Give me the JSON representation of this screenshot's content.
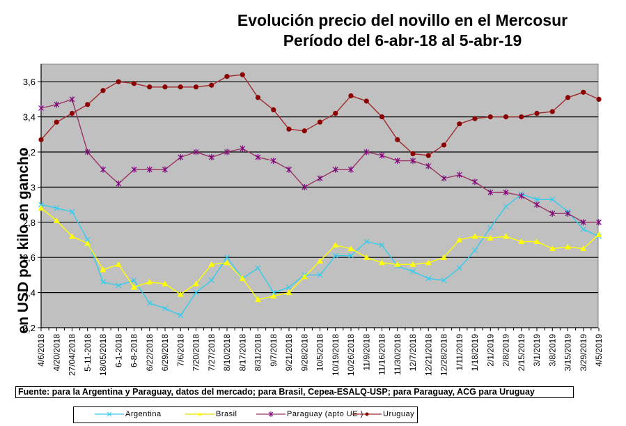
{
  "chart_data": {
    "type": "line",
    "title": [
      "Evolución precio del novillo en el Mercosur",
      "Período del 6-abr-18 al 5-abr-19"
    ],
    "xlabel": "",
    "ylabel": "en USD por kilo en gancho",
    "ylim": [
      2.2,
      3.7
    ],
    "yticks": [
      2.2,
      2.4,
      2.6,
      2.8,
      3.0,
      3.2,
      3.4,
      3.6
    ],
    "ytick_labels": [
      "2,2",
      "2,4",
      "2,6",
      "2,8",
      "3",
      "3,2",
      "3,4",
      "3,6"
    ],
    "grid": true,
    "plot_background": "#c0c0c0",
    "legend_position": "bottom",
    "categories": [
      "4/6/2018",
      "4/20/2018",
      "27/04/2018",
      "5-11-2018",
      "18/05/2018",
      "6-1-2018",
      "6-8-2018",
      "6/22/2018",
      "6/29/2018",
      "7/6/2018",
      "7/20/2018",
      "7/27/2018",
      "8/10/2018",
      "8/17/2018",
      "8/31/2018",
      "9/7/2018",
      "9/21/2018",
      "9/28/2018",
      "10/5/2018",
      "10/19/2018",
      "10/26/2018",
      "11/9/2018",
      "11/16/2018",
      "11/30/2018",
      "12/7/2018",
      "12/21/2018",
      "12/28/2018",
      "1/11/2019",
      "1/18/2019",
      "2/1/2019",
      "2/8/2019",
      "2/15/2019",
      "3/1/2019",
      "3/8/2019",
      "3/15/2019",
      "3/29/2019",
      "4/5/2019"
    ],
    "series": [
      {
        "name": "Argentina",
        "color": "#33ccee",
        "marker": "x",
        "values": [
          2.9,
          2.88,
          2.86,
          2.7,
          2.46,
          2.44,
          2.47,
          2.34,
          2.31,
          2.27,
          2.4,
          2.47,
          2.6,
          2.48,
          2.54,
          2.4,
          2.43,
          2.5,
          2.5,
          2.61,
          2.61,
          2.69,
          2.67,
          2.55,
          2.52,
          2.48,
          2.47,
          2.54,
          2.64,
          2.77,
          2.89,
          2.96,
          2.93,
          2.93,
          2.86,
          2.76,
          2.72
        ]
      },
      {
        "name": "Brasil",
        "color": "#ffff00",
        "marker": "triangle",
        "values": [
          2.88,
          2.81,
          2.72,
          2.68,
          2.53,
          2.56,
          2.43,
          2.46,
          2.45,
          2.39,
          2.45,
          2.56,
          2.57,
          2.48,
          2.36,
          2.38,
          2.4,
          2.49,
          2.58,
          2.67,
          2.65,
          2.6,
          2.57,
          2.56,
          2.56,
          2.57,
          2.6,
          2.7,
          2.72,
          2.71,
          2.72,
          2.69,
          2.69,
          2.65,
          2.66,
          2.65,
          2.73
        ]
      },
      {
        "name": "Paraguay (apto UE )",
        "color": "#993366",
        "marker_color": "#800080",
        "marker": "star",
        "values": [
          3.45,
          3.47,
          3.5,
          3.2,
          3.1,
          3.02,
          3.1,
          3.1,
          3.1,
          3.17,
          3.2,
          3.17,
          3.2,
          3.22,
          3.17,
          3.15,
          3.1,
          3.0,
          3.05,
          3.1,
          3.1,
          3.2,
          3.18,
          3.15,
          3.15,
          3.12,
          3.05,
          3.07,
          3.03,
          2.97,
          2.97,
          2.95,
          2.9,
          2.85,
          2.85,
          2.8,
          2.8
        ]
      },
      {
        "name": "Uruguay",
        "color": "#a0282d",
        "marker_color": "#8b0000",
        "marker": "circle",
        "values": [
          3.27,
          3.37,
          3.42,
          3.47,
          3.55,
          3.6,
          3.59,
          3.57,
          3.57,
          3.57,
          3.57,
          3.58,
          3.63,
          3.64,
          3.51,
          3.44,
          3.33,
          3.32,
          3.37,
          3.42,
          3.52,
          3.49,
          3.4,
          3.27,
          3.19,
          3.18,
          3.24,
          3.36,
          3.39,
          3.4,
          3.4,
          3.4,
          3.42,
          3.43,
          3.51,
          3.54,
          3.5
        ]
      }
    ],
    "source": "Fuente: para la Argentina y Paraguay, datos del mercado; para Brasil, Cepea-ESALQ-USP; para Paraguay, ACG para Uruguay"
  }
}
